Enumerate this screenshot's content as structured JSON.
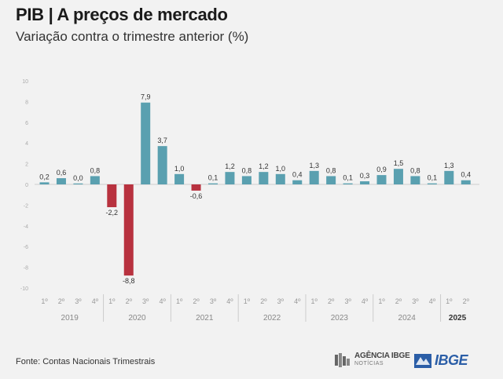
{
  "header": {
    "title": "PIB | A preços de mercado",
    "subtitle": "Variação contra o trimestre anterior (%)"
  },
  "footer": {
    "source": "Fonte: Contas Nacionais Trimestrais",
    "agencia_logo_text": "AGÊNCIA IBGE",
    "agencia_logo_sub": "NOTÍCIAS",
    "ibge_logo_text": "IBGE"
  },
  "colors": {
    "positive": "#5aa0b0",
    "negative": "#b8323f",
    "background": "#f2f2f2"
  },
  "chart_data": {
    "type": "bar",
    "title": "PIB | A preços de mercado",
    "subtitle": "Variação contra o trimestre anterior (%)",
    "ylim": [
      -10,
      10
    ],
    "yticks": [
      10,
      8,
      6,
      4,
      2,
      0,
      -2,
      -4,
      -6,
      -8,
      -10
    ],
    "quarter_labels": [
      "1º",
      "2º",
      "3º",
      "4º"
    ],
    "years": [
      {
        "year": "2019",
        "quarters": [
          "1º",
          "2º",
          "3º",
          "4º"
        ],
        "values": [
          0.2,
          0.6,
          0.0,
          0.8
        ],
        "labels": [
          "0,2",
          "0,6",
          "0,0",
          "0,8"
        ]
      },
      {
        "year": "2020",
        "quarters": [
          "1º",
          "2º",
          "3º",
          "4º"
        ],
        "values": [
          -2.2,
          -8.8,
          7.9,
          3.7
        ],
        "labels": [
          "-2,2",
          "-8,8",
          "7,9",
          "3,7"
        ]
      },
      {
        "year": "2021",
        "quarters": [
          "1º",
          "2º",
          "3º",
          "4º"
        ],
        "values": [
          1.0,
          -0.6,
          0.1,
          1.2
        ],
        "labels": [
          "1,0",
          "-0,6",
          "0,1",
          "1,2"
        ]
      },
      {
        "year": "2022",
        "quarters": [
          "1º",
          "2º",
          "3º",
          "4º"
        ],
        "values": [
          0.8,
          1.2,
          1.0,
          0.4
        ],
        "labels": [
          "0,8",
          "1,2",
          "1,0",
          "0,4"
        ]
      },
      {
        "year": "2023",
        "quarters": [
          "1º",
          "2º",
          "3º",
          "4º"
        ],
        "values": [
          1.3,
          0.8,
          0.1,
          0.3
        ],
        "labels": [
          "1,3",
          "0,8",
          "0,1",
          "0,3"
        ]
      },
      {
        "year": "2024",
        "quarters": [
          "1º",
          "2º",
          "3º",
          "4º"
        ],
        "values": [
          0.9,
          1.5,
          0.8,
          0.1
        ],
        "labels": [
          "0,9",
          "1,5",
          "0,8",
          "0,1"
        ]
      },
      {
        "year": "2025",
        "quarters": [
          "1º",
          "2º"
        ],
        "values": [
          1.3,
          0.4
        ],
        "labels": [
          "1,3",
          "0,4"
        ]
      }
    ],
    "grid": false
  }
}
